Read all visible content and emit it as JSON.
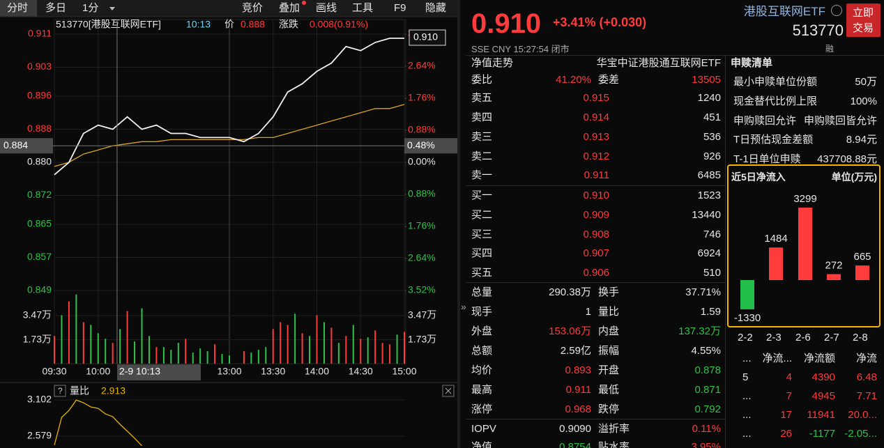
{
  "toolbar": {
    "tabs": [
      "分时",
      "多日",
      "1分"
    ],
    "tools": [
      "竞价",
      "叠加",
      "画线",
      "工具",
      "F9",
      "隐藏"
    ]
  },
  "chart": {
    "header": {
      "code": "513770[港股互联网ETF]",
      "time": "10:13",
      "price_label": "价",
      "price": "0.888",
      "change_label": "涨跌",
      "change": "0.008(0.91%)"
    },
    "xlim": [
      0,
      240
    ],
    "xticks": [
      {
        "value": 0,
        "label": "09:30"
      },
      {
        "value": 30,
        "label": "10:00"
      },
      {
        "value": 120,
        "label": "13:00"
      },
      {
        "value": 150,
        "label": "13:30"
      },
      {
        "value": 180,
        "label": "14:00"
      },
      {
        "value": 210,
        "label": "14:30"
      },
      {
        "value": 240,
        "label": "15:00"
      }
    ],
    "ylim": [
      0.849,
      0.911
    ],
    "yticks": [
      0.911,
      0.903,
      0.896,
      0.888,
      {
        "value": 0.88,
        "label": "0.880"
      },
      0.872,
      0.865,
      0.857,
      0.849
    ],
    "y2lim": [
      -3.52,
      3.52
    ],
    "y2ticks": [
      {
        "value": 3.52,
        "label": "3.52%"
      },
      {
        "value": 2.64,
        "label": "2.64%"
      },
      {
        "value": 1.76,
        "label": "1.76%"
      },
      {
        "value": 0.88,
        "label": "0.88%"
      },
      {
        "value": 0,
        "label": "0.00%"
      },
      {
        "value": -0.88,
        "label": "0.88%"
      },
      {
        "value": -1.76,
        "label": "1.76%"
      },
      {
        "value": -2.64,
        "label": "2.64%"
      },
      {
        "value": -3.52,
        "label": "3.52%"
      }
    ],
    "up_color": "#ff3b3b",
    "down_color": "#2fc24a",
    "crosshair": {
      "price": 0.884,
      "pct_label": "0.48%",
      "x": 43,
      "time_label": "2-9 10:13"
    },
    "last_price_label": "0.910",
    "price": {
      "color": "#f2f2f2",
      "x": [
        0,
        10,
        20,
        30,
        40,
        50,
        60,
        70,
        80,
        90,
        100,
        110,
        120,
        130,
        140,
        150,
        160,
        170,
        180,
        190,
        200,
        210,
        220,
        230,
        240
      ],
      "values": [
        0.877,
        0.88,
        0.887,
        0.889,
        0.888,
        0.891,
        0.888,
        0.889,
        0.887,
        0.887,
        0.886,
        0.886,
        0.886,
        0.885,
        0.887,
        0.891,
        0.897,
        0.899,
        0.902,
        0.904,
        0.908,
        0.907,
        0.909,
        0.91,
        0.91
      ]
    },
    "average": {
      "color": "#d9a520",
      "x": [
        0,
        10,
        20,
        30,
        40,
        50,
        60,
        70,
        80,
        90,
        100,
        110,
        120,
        130,
        140,
        150,
        160,
        170,
        180,
        190,
        200,
        210,
        220,
        230,
        240
      ],
      "values": [
        0.879,
        0.88,
        0.882,
        0.883,
        0.884,
        0.8845,
        0.885,
        0.885,
        0.8855,
        0.8855,
        0.8855,
        0.8855,
        0.8855,
        0.8855,
        0.886,
        0.886,
        0.887,
        0.888,
        0.889,
        0.89,
        0.891,
        0.892,
        0.893,
        0.893,
        0.894
      ]
    },
    "volume_ylim": [
      0,
      51300
    ],
    "volume_ticks": [
      {
        "value": 34700,
        "label": "3.47万"
      },
      {
        "value": 17300,
        "label": "1.73万"
      }
    ],
    "volume_up": {
      "color": "#ff3b3b",
      "x": [
        0,
        10,
        20,
        40,
        50,
        70,
        90,
        110,
        130,
        150,
        155,
        160,
        170,
        180,
        190,
        200,
        210,
        220,
        225,
        230,
        240
      ],
      "values": [
        20000,
        45000,
        30000,
        15000,
        38000,
        12000,
        18000,
        14000,
        9000,
        25000,
        30000,
        28000,
        22000,
        35000,
        26000,
        20000,
        18000,
        24000,
        15000,
        14000,
        23000
      ]
    },
    "volume_down": {
      "color": "#2fc24a",
      "x": [
        5,
        15,
        25,
        30,
        35,
        45,
        55,
        60,
        65,
        75,
        80,
        85,
        95,
        100,
        105,
        115,
        120,
        135,
        140,
        145,
        165,
        175,
        185,
        195,
        205,
        215,
        235
      ],
      "values": [
        35000,
        50000,
        28000,
        22000,
        18000,
        25000,
        16000,
        40000,
        20000,
        12000,
        10000,
        15000,
        8000,
        11000,
        9000,
        7000,
        6000,
        8000,
        10000,
        12000,
        36000,
        20000,
        30000,
        15000,
        28000,
        19000,
        21000
      ]
    }
  },
  "ratio": {
    "help": "?",
    "label": "量比",
    "value": "2.913",
    "color": "#e8b400",
    "ylim": [
      2.408,
      3.192
    ],
    "yticks": [
      3.102,
      2.579
    ],
    "x": [
      0,
      5,
      10,
      15,
      20,
      25,
      30,
      35,
      40,
      45,
      50,
      55,
      60
    ],
    "values": [
      2.45,
      2.85,
      2.95,
      3.1,
      3.06,
      3.0,
      2.98,
      2.9,
      2.86,
      2.75,
      2.65,
      2.55,
      2.44
    ]
  },
  "quote": {
    "price": "0.910",
    "change": "+3.41% (+0.030)",
    "name": "港股互联网ETF",
    "code": "513770",
    "button": [
      "立即",
      "交易"
    ],
    "status": "SSE  CNY  15:27:54  闭市",
    "margin_tag": "融"
  },
  "book": {
    "nav": {
      "label": "净值走势",
      "fund": "华宝中证港股通互联网ETF"
    },
    "ratio": {
      "label": "委比",
      "value": "41.20%",
      "label2": "委差",
      "value2": "13505"
    },
    "asks": [
      {
        "label": "卖五",
        "price": "0.915",
        "volume": "1240"
      },
      {
        "label": "卖四",
        "price": "0.914",
        "volume": "451"
      },
      {
        "label": "卖三",
        "price": "0.913",
        "volume": "536"
      },
      {
        "label": "卖二",
        "price": "0.912",
        "volume": "926"
      },
      {
        "label": "卖一",
        "price": "0.911",
        "volume": "6485"
      }
    ],
    "bids": [
      {
        "label": "买一",
        "price": "0.910",
        "volume": "1523"
      },
      {
        "label": "买二",
        "price": "0.909",
        "volume": "13440"
      },
      {
        "label": "买三",
        "price": "0.908",
        "volume": "746"
      },
      {
        "label": "买四",
        "price": "0.907",
        "volume": "6924"
      },
      {
        "label": "买五",
        "price": "0.906",
        "volume": "510"
      }
    ],
    "stats": [
      {
        "label": "总量",
        "value": "290.38万",
        "color": "#e6e6e6",
        "label2": "换手",
        "value2": "37.71%",
        "color2": "#e6e6e6"
      },
      {
        "label": "现手",
        "value": "1",
        "color": "#e6e6e6",
        "label2": "量比",
        "value2": "1.59",
        "color2": "#e6e6e6"
      },
      {
        "label": "外盘",
        "value": "153.06万",
        "color": "#ff3b3b",
        "label2": "内盘",
        "value2": "137.32万",
        "color2": "#2fc24a"
      },
      {
        "label": "总额",
        "value": "2.59亿",
        "color": "#e6e6e6",
        "label2": "振幅",
        "value2": "4.55%",
        "color2": "#e6e6e6"
      },
      {
        "label": "均价",
        "value": "0.893",
        "color": "#ff3b3b",
        "label2": "开盘",
        "value2": "0.878",
        "color2": "#2fc24a"
      },
      {
        "label": "最高",
        "value": "0.911",
        "color": "#ff3b3b",
        "label2": "最低",
        "value2": "0.871",
        "color2": "#2fc24a"
      },
      {
        "label": "涨停",
        "value": "0.968",
        "color": "#ff3b3b",
        "label2": "跌停",
        "value2": "0.792",
        "color2": "#2fc24a"
      }
    ],
    "extra": [
      {
        "label": "IOPV",
        "value": "0.9090",
        "color": "#e6e6e6",
        "label2": "溢折率",
        "value2": "0.11%",
        "color2": "#ff3b3b"
      },
      {
        "label": "净值",
        "value": "0.8754",
        "color": "#2fc24a",
        "label2": "贴水率",
        "value2": "3.95%",
        "color2": "#ff3b3b"
      }
    ]
  },
  "creation": {
    "title": "申赎清单",
    "rows": [
      {
        "label": "最小申赎单位份额",
        "value": "50万"
      },
      {
        "label": "现金替代比例上限",
        "value": "100%"
      },
      {
        "label": "申购赎回允许",
        "value": "申购赎回皆允许"
      },
      {
        "label": "T日预估现金差额",
        "value": "8.94元"
      },
      {
        "label": "T-1日单位申赎",
        "value": "437708.88元"
      }
    ]
  },
  "netflow": {
    "type": "bar",
    "title": "近5日净流入",
    "unit": "单位(万元)",
    "categories": [
      "2-2",
      "2-3",
      "2-6",
      "2-7",
      "2-8"
    ],
    "values": [
      -1330,
      1484,
      3299,
      272,
      665
    ],
    "up_color": "#ff3b3b",
    "down_color": "#22c04a"
  },
  "flow_table": {
    "header": [
      "...",
      "净流...",
      "净流额",
      "净流"
    ],
    "rows": [
      [
        "5",
        "4",
        "4390",
        "6.48"
      ],
      [
        "...",
        "7",
        "4945",
        "7.71"
      ],
      [
        "...",
        "17",
        "11941",
        "20.0..."
      ],
      [
        "...",
        "26",
        "-1177",
        "-2.05..."
      ]
    ]
  }
}
